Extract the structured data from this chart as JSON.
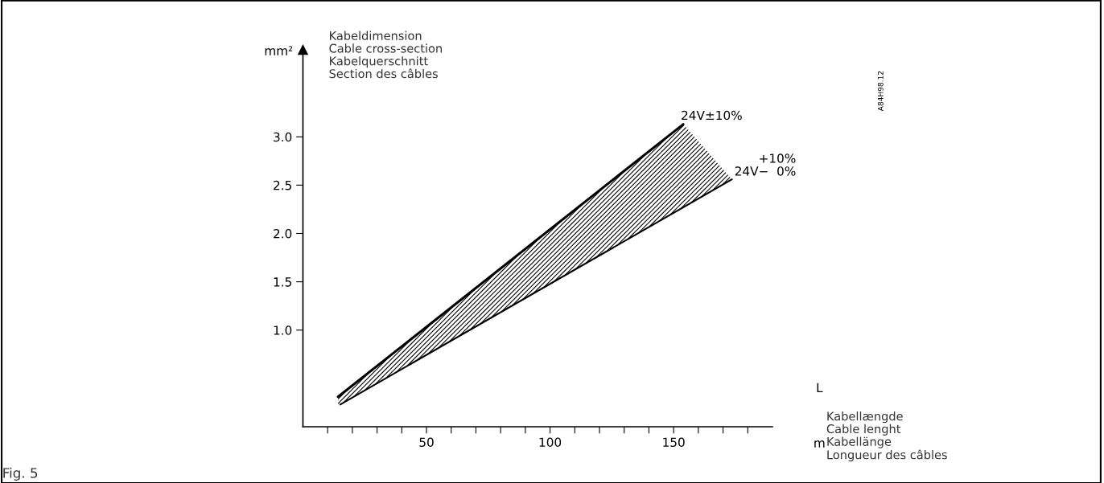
{
  "chart_data": {
    "type": "line",
    "ylabel": "mm²",
    "xlabel": "L",
    "annotations": [
      "Kabeldimension\nCable cross-section\nKabelquerschnitt\nSection des câbles",
      "m",
      "Kabellængde\nCable lenght\nKabellänge\nLongueur des câbles",
      "A84H98.12",
      "Fig. 5"
    ],
    "series": [
      {
        "name": "24V±10%",
        "color": "#000000",
        "x": [
          14.2,
          153.9
        ],
        "values": [
          0.31,
          3.13
        ]
      },
      {
        "name": "+10%\n24V−  0%",
        "color": "#000000",
        "x": [
          15.1,
          173.6
        ],
        "values": [
          0.23,
          2.56
        ]
      },
      {
        "type": "area",
        "color": "#000000",
        "x": [
          14.2,
          153.9,
          173.6
        ],
        "values": [
          null,
          null,
          null
        ],
        "lower": [
          0.22,
          2.27,
          2.56
        ],
        "upper": [
          0.31,
          3.13,
          2.56
        ]
      }
    ],
    "xlim": [
      0,
      190
    ],
    "ylim": [
      0,
      3.9
    ],
    "xticks": [
      {
        "value": 10,
        "label": null
      },
      {
        "value": 20,
        "label": null
      },
      {
        "value": 30,
        "label": null
      },
      {
        "value": 40,
        "label": null
      },
      50,
      {
        "value": 60,
        "label": null
      },
      {
        "value": 70,
        "label": null
      },
      {
        "value": 80,
        "label": null
      },
      {
        "value": 90,
        "label": null
      },
      100,
      {
        "value": 110,
        "label": null
      },
      {
        "value": 120,
        "label": null
      },
      {
        "value": 130,
        "label": null
      },
      {
        "value": 140,
        "label": null
      },
      150,
      {
        "value": 160,
        "label": null
      },
      {
        "value": 170,
        "label": null
      },
      {
        "value": 180,
        "label": null
      }
    ],
    "yticks": [
      {
        "value": 1.0,
        "label": "1.0"
      },
      {
        "value": 1.5,
        "label": "1.5"
      },
      {
        "value": 2.0,
        "label": "2.0"
      },
      {
        "value": 2.5,
        "label": "2.5"
      },
      {
        "value": 3.0,
        "label": "3.0"
      }
    ],
    "grid": false,
    "legend": false,
    "marker": "none",
    "line_style": "solid"
  }
}
